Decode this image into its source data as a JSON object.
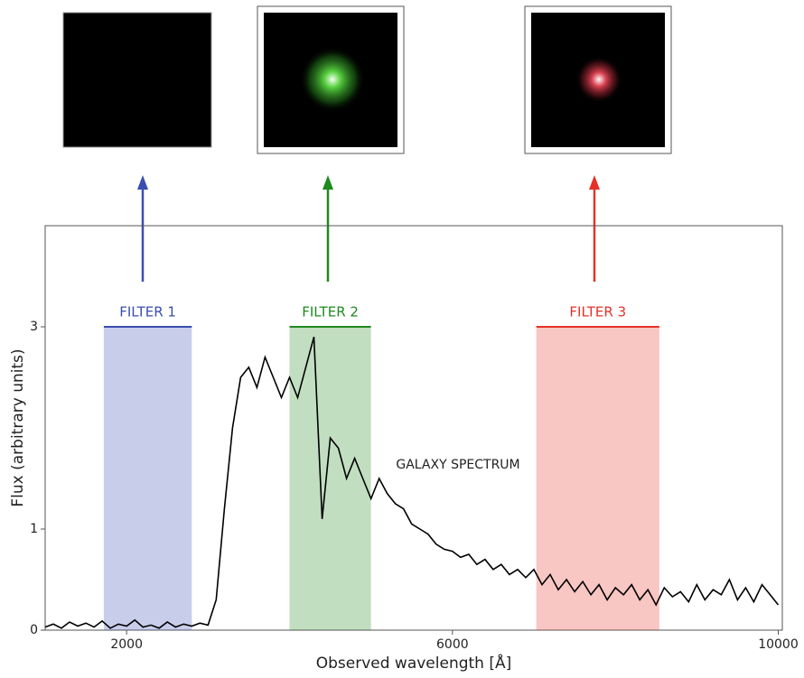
{
  "chart_data": {
    "type": "line",
    "x_label": "Observed wavelength [Å]",
    "y_label": "Flux (arbitrary units)",
    "x": [
      1000,
      1100,
      1200,
      1300,
      1400,
      1500,
      1600,
      1700,
      1800,
      1900,
      2000,
      2100,
      2200,
      2300,
      2400,
      2500,
      2600,
      2700,
      2800,
      2900,
      3000,
      3100,
      3200,
      3300,
      3400,
      3500,
      3600,
      3700,
      3800,
      3900,
      4000,
      4100,
      4200,
      4300,
      4400,
      4500,
      4600,
      4700,
      4800,
      4900,
      5000,
      5100,
      5200,
      5300,
      5400,
      5500,
      5600,
      5700,
      5800,
      5900,
      6000,
      6100,
      6200,
      6300,
      6400,
      6500,
      6600,
      6700,
      6800,
      6900,
      7000,
      7100,
      7200,
      7300,
      7400,
      7500,
      7600,
      7700,
      7800,
      7900,
      8000,
      8100,
      8200,
      8300,
      8400,
      8500,
      8600,
      8700,
      8800,
      8900,
      9000,
      9100,
      9200,
      9300,
      9400,
      9500,
      9600,
      9700,
      9800,
      9900,
      10000
    ],
    "series": [
      {
        "name": "GALAXY SPECTRUM",
        "color": "#000000",
        "values": [
          0.03,
          0.06,
          0.02,
          0.08,
          0.04,
          0.07,
          0.03,
          0.09,
          0.02,
          0.06,
          0.04,
          0.1,
          0.03,
          0.05,
          0.02,
          0.08,
          0.03,
          0.06,
          0.04,
          0.07,
          0.05,
          0.3,
          1.2,
          2.0,
          2.5,
          2.6,
          2.4,
          2.7,
          2.5,
          2.3,
          2.5,
          2.3,
          2.6,
          2.9,
          1.1,
          1.9,
          1.8,
          1.5,
          1.7,
          1.5,
          1.3,
          1.5,
          1.35,
          1.25,
          1.2,
          1.05,
          1.0,
          0.95,
          0.85,
          0.8,
          0.78,
          0.72,
          0.75,
          0.65,
          0.7,
          0.6,
          0.65,
          0.55,
          0.6,
          0.52,
          0.6,
          0.45,
          0.55,
          0.4,
          0.5,
          0.38,
          0.48,
          0.35,
          0.45,
          0.3,
          0.42,
          0.35,
          0.45,
          0.3,
          0.4,
          0.25,
          0.42,
          0.33,
          0.38,
          0.28,
          0.45,
          0.3,
          0.4,
          0.35,
          0.5,
          0.3,
          0.42,
          0.28,
          0.45,
          0.35,
          0.25
        ]
      }
    ],
    "bands": [
      {
        "label": "FILTER 1",
        "range": [
          1720,
          2800
        ],
        "top": 3,
        "color": "#3a4db0"
      },
      {
        "label": "FILTER 2",
        "range": [
          4000,
          5000
        ],
        "top": 3,
        "color": "#1f8a1f"
      },
      {
        "label": "FILTER 3",
        "range": [
          7030,
          8540
        ],
        "top": 3,
        "color": "#e53228"
      }
    ],
    "xlim": [
      1000,
      10050
    ],
    "ylim": [
      0,
      4
    ],
    "xticks": [
      2000,
      6000,
      10000
    ],
    "yticks": [
      0,
      1,
      3
    ]
  }
}
